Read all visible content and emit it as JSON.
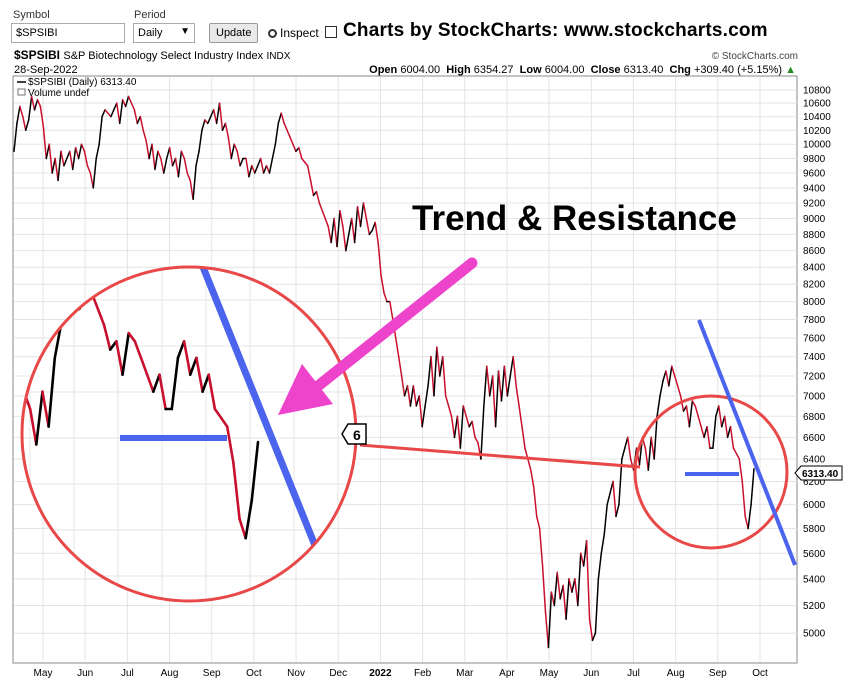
{
  "toolbar": {
    "symbol_label": "Symbol",
    "symbol_value": "$SPSIBI",
    "period_label": "Period",
    "period_value": "Daily",
    "update_label": "Update",
    "inspect_label": "Inspect",
    "brand_text": "Charts by StockCharts:  www.stockcharts.com"
  },
  "header": {
    "ticker": "$SPSIBI",
    "name": "S&P Biotechnology Select Industry Index",
    "exchange": "INDX",
    "copyright": "© StockCharts.com",
    "date": "28-Sep-2022",
    "open_label": "Open",
    "open": "6004.00",
    "high_label": "High",
    "high": "6354.27",
    "low_label": "Low",
    "low": "6004.00",
    "close_label": "Close",
    "close": "6313.40",
    "chg_label": "Chg",
    "chg": "+309.40 (+5.15%)",
    "legend_series": "$SPSIBI (Daily) 6313.40",
    "legend_volume": "Volume undef",
    "price_tag": "6313.40",
    "zoom_tag": "6"
  },
  "annotation": {
    "text": "Trend & Resistance",
    "arrow_color": "#ee44cc",
    "circle_color": "#e84848",
    "trend_color": "#4a64ee"
  },
  "chart_data": {
    "type": "line",
    "title": "$SPSIBI (Daily) 6313.40",
    "y_ticks": [
      5000,
      5200,
      5400,
      5600,
      5800,
      6000,
      6200,
      6400,
      6600,
      6800,
      7000,
      7200,
      7400,
      7600,
      7800,
      8000,
      8200,
      8400,
      8600,
      8800,
      9000,
      9200,
      9400,
      9600,
      9800,
      10000,
      10200,
      10400,
      10600,
      10800
    ],
    "x_ticks": [
      "May",
      "Jun",
      "Jul",
      "Aug",
      "Sep",
      "Oct",
      "Nov",
      "Dec",
      "2022",
      "Feb",
      "Mar",
      "Apr",
      "May",
      "Jun",
      "Jul",
      "Aug",
      "Sep",
      "Oct"
    ],
    "ylim": [
      4800,
      11000
    ],
    "y_scale": "log",
    "grid": true,
    "series": [
      {
        "values": [
          9900,
          10300,
          10550,
          10400,
          10200,
          10350,
          10700,
          10500,
          10650,
          10550,
          10250,
          9800,
          10000,
          9600,
          9800,
          9500,
          9900,
          9700,
          9800,
          9900,
          9650,
          9950,
          9800,
          10000,
          9900,
          9700,
          9600,
          9400,
          9800,
          10000,
          10400,
          10500,
          10450,
          10400,
          10500,
          10600,
          10300,
          10650,
          10550,
          10700,
          10600,
          10500,
          10300,
          10400,
          10200,
          10050,
          9800,
          10000,
          9650,
          9900,
          9800,
          9600,
          9800,
          9950,
          9700,
          9800,
          9550,
          9900,
          9800,
          9600,
          9500,
          9250,
          9700,
          9900,
          10200,
          10350,
          10300,
          10400,
          10500,
          10300,
          10600,
          10200,
          10300,
          10100,
          9800,
          10000,
          9900,
          9700,
          9800,
          9800,
          9550,
          9700,
          9600,
          9700,
          9800,
          9600,
          9700,
          9600,
          9800,
          10000,
          10300,
          10450,
          10300,
          10200,
          10100,
          10000,
          9900,
          9950,
          9800,
          9750,
          9700,
          9500,
          9300,
          9350,
          9200,
          9100,
          9000,
          8900,
          8700,
          9000,
          8650,
          9100,
          8900,
          8600,
          8800,
          9000,
          8700,
          9150,
          8900,
          9200,
          9000,
          8800,
          8850,
          8950,
          8700,
          8300,
          8100,
          8000,
          8000,
          7800,
          7600,
          7400,
          7200,
          7000,
          7100,
          6900,
          7100,
          6900,
          7000,
          6700,
          6900,
          7100,
          7400,
          7000,
          7500,
          7200,
          7400,
          7000,
          6900,
          6800,
          6600,
          6800,
          6500,
          6900,
          6800,
          6700,
          6750,
          6600,
          6550,
          6400,
          6900,
          7300,
          7000,
          7200,
          6700,
          7250,
          6950,
          7300,
          7000,
          7200,
          7400,
          7100,
          6900,
          6700,
          6500,
          6400,
          6300,
          6150,
          5900,
          5800,
          5500,
          5150,
          4900,
          5300,
          5200,
          5450,
          5250,
          5350,
          5100,
          5400,
          5300,
          5400,
          5200,
          5600,
          5500,
          5700,
          5100,
          4950,
          5000,
          5400,
          5600,
          5750,
          6000,
          6100,
          6200,
          5900,
          6000,
          6400,
          6500,
          6600,
          6400,
          6300,
          6500,
          6350,
          6600,
          6500,
          6300,
          6600,
          6400,
          6800,
          7000,
          7150,
          7250,
          7100,
          7300,
          7200,
          7100,
          7000,
          6850,
          6900,
          6700,
          6950,
          6900,
          6800,
          6700,
          6600,
          6700,
          6500,
          6500,
          6800,
          6900,
          6700,
          6800,
          6600,
          6700,
          6500,
          6450,
          6400,
          6200,
          5900,
          5800,
          6000,
          6313
        ]
      }
    ]
  }
}
